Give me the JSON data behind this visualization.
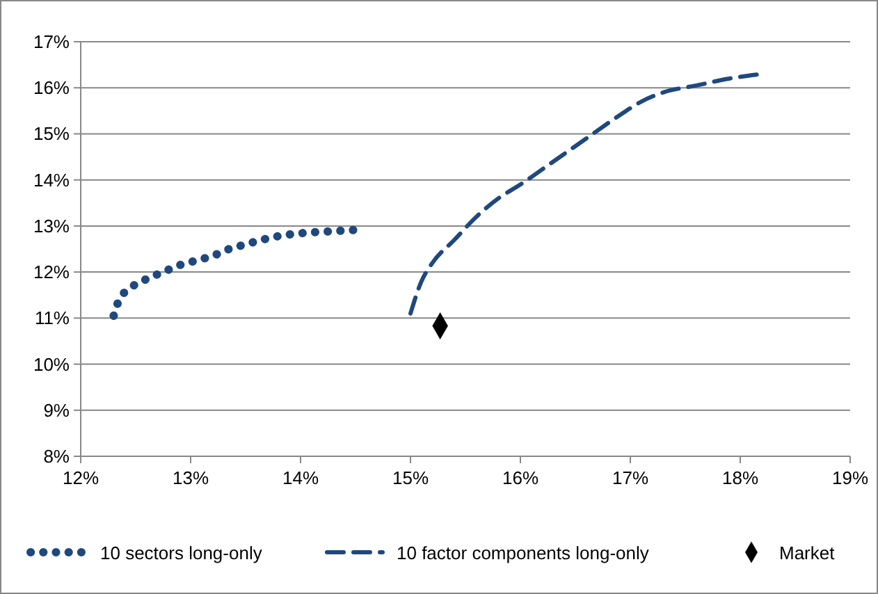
{
  "chart_data": {
    "type": "line",
    "xlim": [
      12,
      19
    ],
    "ylim": [
      8,
      17
    ],
    "xticks": [
      {
        "value": 12,
        "label": "12%"
      },
      {
        "value": 13,
        "label": "13%"
      },
      {
        "value": 14,
        "label": "14%"
      },
      {
        "value": 15,
        "label": "15%"
      },
      {
        "value": 16,
        "label": "16%"
      },
      {
        "value": 17,
        "label": "17%"
      },
      {
        "value": 18,
        "label": "18%"
      },
      {
        "value": 19,
        "label": "19%"
      }
    ],
    "yticks": [
      {
        "value": 8,
        "label": "8%"
      },
      {
        "value": 9,
        "label": "9%"
      },
      {
        "value": 10,
        "label": "10%"
      },
      {
        "value": 11,
        "label": "11%"
      },
      {
        "value": 12,
        "label": "12%"
      },
      {
        "value": 13,
        "label": "13%"
      },
      {
        "value": 14,
        "label": "14%"
      },
      {
        "value": 15,
        "label": "15%"
      },
      {
        "value": 16,
        "label": "16%"
      },
      {
        "value": 17,
        "label": "17%"
      }
    ],
    "grid": "y",
    "legend": "bottom",
    "series": [
      {
        "name": "10 sectors long-only",
        "line_style": "dotted",
        "color": "#1f497d",
        "x": [
          12.3,
          12.35,
          12.45,
          12.6,
          12.75,
          12.9,
          13.05,
          13.2,
          13.35,
          13.5,
          13.65,
          13.8,
          13.95,
          14.1,
          14.25,
          14.4,
          14.55
        ],
        "values": [
          11.05,
          11.4,
          11.65,
          11.85,
          12.0,
          12.15,
          12.25,
          12.35,
          12.5,
          12.6,
          12.7,
          12.78,
          12.83,
          12.86,
          12.88,
          12.9,
          12.92
        ]
      },
      {
        "name": "10 factor components long-only",
        "line_style": "dashed",
        "color": "#1f497d",
        "x": [
          15.0,
          15.1,
          15.2,
          15.4,
          15.6,
          15.8,
          16.0,
          16.3,
          16.6,
          16.9,
          17.1,
          17.3,
          17.6,
          17.9,
          18.2
        ],
        "values": [
          11.1,
          11.8,
          12.2,
          12.7,
          13.2,
          13.6,
          13.9,
          14.4,
          14.9,
          15.4,
          15.7,
          15.9,
          16.05,
          16.2,
          16.3
        ]
      },
      {
        "name": "Market",
        "type": "scatter",
        "marker": "diamond",
        "color": "#000000",
        "x": [
          15.27
        ],
        "values": [
          10.83
        ]
      }
    ]
  }
}
